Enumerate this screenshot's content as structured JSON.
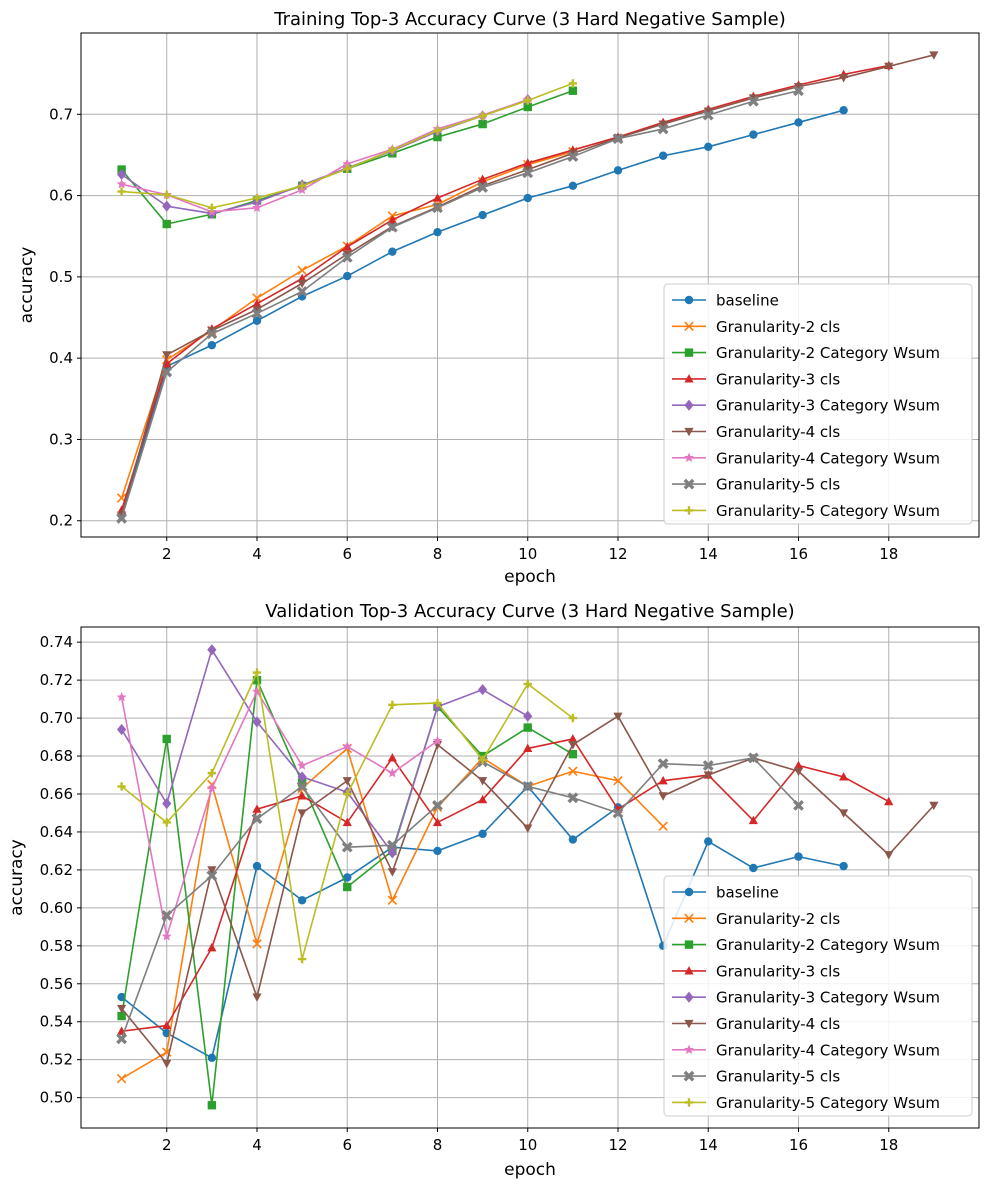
{
  "chart_data": [
    {
      "type": "line",
      "title": "Training Top-3 Accuracy Curve (3 Hard Negative Sample)",
      "xlabel": "epoch",
      "ylabel": "accuracy",
      "xlim": [
        0.1,
        20.0
      ],
      "ylim": [
        0.18,
        0.8
      ],
      "xticks": [
        2,
        4,
        6,
        8,
        10,
        12,
        14,
        16,
        18
      ],
      "yticks": [
        0.2,
        0.3,
        0.4,
        0.5,
        0.6,
        0.7
      ],
      "ytick_labels": [
        "0.2",
        "0.3",
        "0.4",
        "0.5",
        "0.6",
        "0.7"
      ],
      "grid": true,
      "legend_position": "lower-right",
      "series": [
        {
          "name": "baseline",
          "color": "#1f77b4",
          "marker": "circle",
          "x": [
            1,
            2,
            3,
            4,
            5,
            6,
            7,
            8,
            9,
            10,
            11,
            12,
            13,
            14,
            15,
            16,
            17
          ],
          "y": [
            0.207,
            0.39,
            0.416,
            0.446,
            0.476,
            0.501,
            0.531,
            0.555,
            0.576,
            0.597,
            0.612,
            0.631,
            0.649,
            0.66,
            0.675,
            0.69,
            0.705
          ]
        },
        {
          "name": "Granularity-2 cls",
          "color": "#ff7f0e",
          "marker": "x",
          "x": [
            1,
            2,
            3,
            4,
            5,
            6,
            7,
            8,
            9,
            10,
            11
          ],
          "y": [
            0.228,
            0.398,
            0.434,
            0.474,
            0.508,
            0.538,
            0.575,
            0.589,
            0.617,
            0.638,
            0.654
          ]
        },
        {
          "name": "Granularity-2 Category Wsum",
          "color": "#2ca02c",
          "marker": "square",
          "x": [
            1,
            2,
            3,
            4,
            5,
            6,
            7,
            8,
            9,
            10,
            11
          ],
          "y": [
            0.632,
            0.565,
            0.577,
            0.594,
            0.612,
            0.633,
            0.652,
            0.672,
            0.688,
            0.709,
            0.729
          ]
        },
        {
          "name": "Granularity-3 cls",
          "color": "#d62728",
          "marker": "triangle-up",
          "x": [
            1,
            2,
            3,
            4,
            5,
            6,
            7,
            8,
            9,
            10,
            11,
            12,
            13,
            14,
            15,
            16,
            17,
            18
          ],
          "y": [
            0.213,
            0.393,
            0.436,
            0.467,
            0.498,
            0.537,
            0.57,
            0.597,
            0.62,
            0.64,
            0.656,
            0.672,
            0.69,
            0.706,
            0.722,
            0.736,
            0.749,
            0.76
          ]
        },
        {
          "name": "Granularity-3 Category Wsum",
          "color": "#9467bd",
          "marker": "diamond",
          "x": [
            1,
            2,
            3,
            4,
            5,
            6,
            7,
            8,
            9,
            10
          ],
          "y": [
            0.626,
            0.587,
            0.578,
            0.592,
            0.613,
            0.634,
            0.655,
            0.679,
            0.698,
            0.718
          ]
        },
        {
          "name": "Granularity-4 cls",
          "color": "#8c564b",
          "marker": "triangle-down",
          "x": [
            1,
            2,
            3,
            4,
            5,
            6,
            7,
            8,
            9,
            10,
            11,
            12,
            13,
            14,
            15,
            16,
            17,
            18,
            19
          ],
          "y": [
            0.207,
            0.404,
            0.434,
            0.46,
            0.492,
            0.528,
            0.562,
            0.586,
            0.612,
            0.632,
            0.652,
            0.671,
            0.688,
            0.704,
            0.72,
            0.734,
            0.745,
            0.759,
            0.773
          ]
        },
        {
          "name": "Granularity-4 Category Wsum",
          "color": "#e377c2",
          "marker": "star",
          "x": [
            1,
            2,
            3,
            4,
            5,
            6,
            7,
            8,
            9,
            10
          ],
          "y": [
            0.614,
            0.601,
            0.58,
            0.585,
            0.607,
            0.639,
            0.657,
            0.682,
            0.699,
            0.718
          ]
        },
        {
          "name": "Granularity-5 cls",
          "color": "#7f7f7f",
          "marker": "plus-bold",
          "x": [
            1,
            2,
            3,
            4,
            5,
            6,
            7,
            8,
            9,
            10,
            11,
            12,
            13,
            14,
            15,
            16
          ],
          "y": [
            0.203,
            0.383,
            0.43,
            0.455,
            0.482,
            0.524,
            0.561,
            0.585,
            0.61,
            0.628,
            0.648,
            0.67,
            0.682,
            0.699,
            0.716,
            0.729
          ]
        },
        {
          "name": "Granularity-5 Category Wsum",
          "color": "#bcbd22",
          "marker": "plus",
          "x": [
            1,
            2,
            3,
            4,
            5,
            6,
            7,
            8,
            9,
            10,
            11
          ],
          "y": [
            0.605,
            0.601,
            0.585,
            0.597,
            0.612,
            0.633,
            0.656,
            0.68,
            0.698,
            0.717,
            0.738
          ]
        }
      ]
    },
    {
      "type": "line",
      "title": "Validation Top-3 Accuracy Curve (3 Hard Negative Sample)",
      "xlabel": "epoch",
      "ylabel": "accuracy",
      "xlim": [
        0.1,
        20.0
      ],
      "ylim": [
        0.484,
        0.748
      ],
      "xticks": [
        2,
        4,
        6,
        8,
        10,
        12,
        14,
        16,
        18
      ],
      "yticks": [
        0.5,
        0.52,
        0.54,
        0.56,
        0.58,
        0.6,
        0.62,
        0.64,
        0.66,
        0.68,
        0.7,
        0.72,
        0.74
      ],
      "ytick_labels": [
        "0.50",
        "0.52",
        "0.54",
        "0.56",
        "0.58",
        "0.60",
        "0.62",
        "0.64",
        "0.66",
        "0.68",
        "0.70",
        "0.72",
        "0.74"
      ],
      "grid": true,
      "legend_position": "lower-right",
      "series": [
        {
          "name": "baseline",
          "color": "#1f77b4",
          "marker": "circle",
          "x": [
            1,
            2,
            3,
            4,
            5,
            6,
            7,
            8,
            9,
            10,
            11,
            12,
            13,
            14,
            15,
            16,
            17
          ],
          "y": [
            0.553,
            0.534,
            0.521,
            0.622,
            0.604,
            0.616,
            0.632,
            0.63,
            0.639,
            0.664,
            0.636,
            0.653,
            0.58,
            0.635,
            0.621,
            0.627,
            0.622
          ]
        },
        {
          "name": "Granularity-2 cls",
          "color": "#ff7f0e",
          "marker": "x",
          "x": [
            1,
            2,
            3,
            4,
            5,
            6,
            7,
            8,
            9,
            10,
            11,
            12,
            13
          ],
          "y": [
            0.51,
            0.524,
            0.665,
            0.581,
            0.663,
            0.684,
            0.604,
            0.653,
            0.679,
            0.664,
            0.672,
            0.667,
            0.643
          ]
        },
        {
          "name": "Granularity-2 Category Wsum",
          "color": "#2ca02c",
          "marker": "square",
          "x": [
            1,
            2,
            3,
            4,
            5,
            6,
            7,
            8,
            9,
            10,
            11
          ],
          "y": [
            0.543,
            0.689,
            0.496,
            0.72,
            0.666,
            0.611,
            0.63,
            0.706,
            0.68,
            0.695,
            0.681
          ]
        },
        {
          "name": "Granularity-3 cls",
          "color": "#d62728",
          "marker": "triangle-up",
          "x": [
            1,
            2,
            3,
            4,
            5,
            6,
            7,
            8,
            9,
            10,
            11,
            12,
            13,
            14,
            15,
            16,
            17,
            18
          ],
          "y": [
            0.535,
            0.538,
            0.579,
            0.652,
            0.659,
            0.645,
            0.679,
            0.645,
            0.657,
            0.684,
            0.689,
            0.652,
            0.667,
            0.67,
            0.646,
            0.675,
            0.669,
            0.656
          ]
        },
        {
          "name": "Granularity-3 Category Wsum",
          "color": "#9467bd",
          "marker": "diamond",
          "x": [
            1,
            2,
            3,
            4,
            5,
            6,
            7,
            8,
            9,
            10
          ],
          "y": [
            0.694,
            0.655,
            0.736,
            0.698,
            0.669,
            0.661,
            0.629,
            0.706,
            0.715,
            0.701
          ]
        },
        {
          "name": "Granularity-4 cls",
          "color": "#8c564b",
          "marker": "triangle-down",
          "x": [
            1,
            2,
            3,
            4,
            5,
            6,
            7,
            8,
            9,
            10,
            11,
            12,
            13,
            14,
            15,
            16,
            17,
            18,
            19
          ],
          "y": [
            0.547,
            0.518,
            0.62,
            0.553,
            0.65,
            0.667,
            0.619,
            0.686,
            0.667,
            0.642,
            0.686,
            0.701,
            0.659,
            0.67,
            0.679,
            0.672,
            0.65,
            0.628,
            0.654
          ]
        },
        {
          "name": "Granularity-4 Category Wsum",
          "color": "#e377c2",
          "marker": "star",
          "x": [
            1,
            2,
            3,
            4,
            5,
            6,
            7,
            8
          ],
          "y": [
            0.711,
            0.585,
            0.663,
            0.714,
            0.675,
            0.685,
            0.671,
            0.688
          ]
        },
        {
          "name": "Granularity-5 cls",
          "color": "#7f7f7f",
          "marker": "plus-bold",
          "x": [
            1,
            2,
            3,
            4,
            5,
            6,
            7,
            8,
            9,
            10,
            11,
            12,
            13,
            14,
            15,
            16
          ],
          "y": [
            0.531,
            0.596,
            0.617,
            0.647,
            0.664,
            0.632,
            0.633,
            0.654,
            0.677,
            0.664,
            0.658,
            0.65,
            0.676,
            0.675,
            0.679,
            0.654
          ]
        },
        {
          "name": "Granularity-5 Category Wsum",
          "color": "#bcbd22",
          "marker": "plus",
          "x": [
            1,
            2,
            3,
            4,
            5,
            6,
            7,
            8,
            9,
            10,
            11
          ],
          "y": [
            0.664,
            0.645,
            0.671,
            0.724,
            0.573,
            0.66,
            0.707,
            0.708,
            0.678,
            0.718,
            0.7
          ]
        }
      ]
    }
  ]
}
